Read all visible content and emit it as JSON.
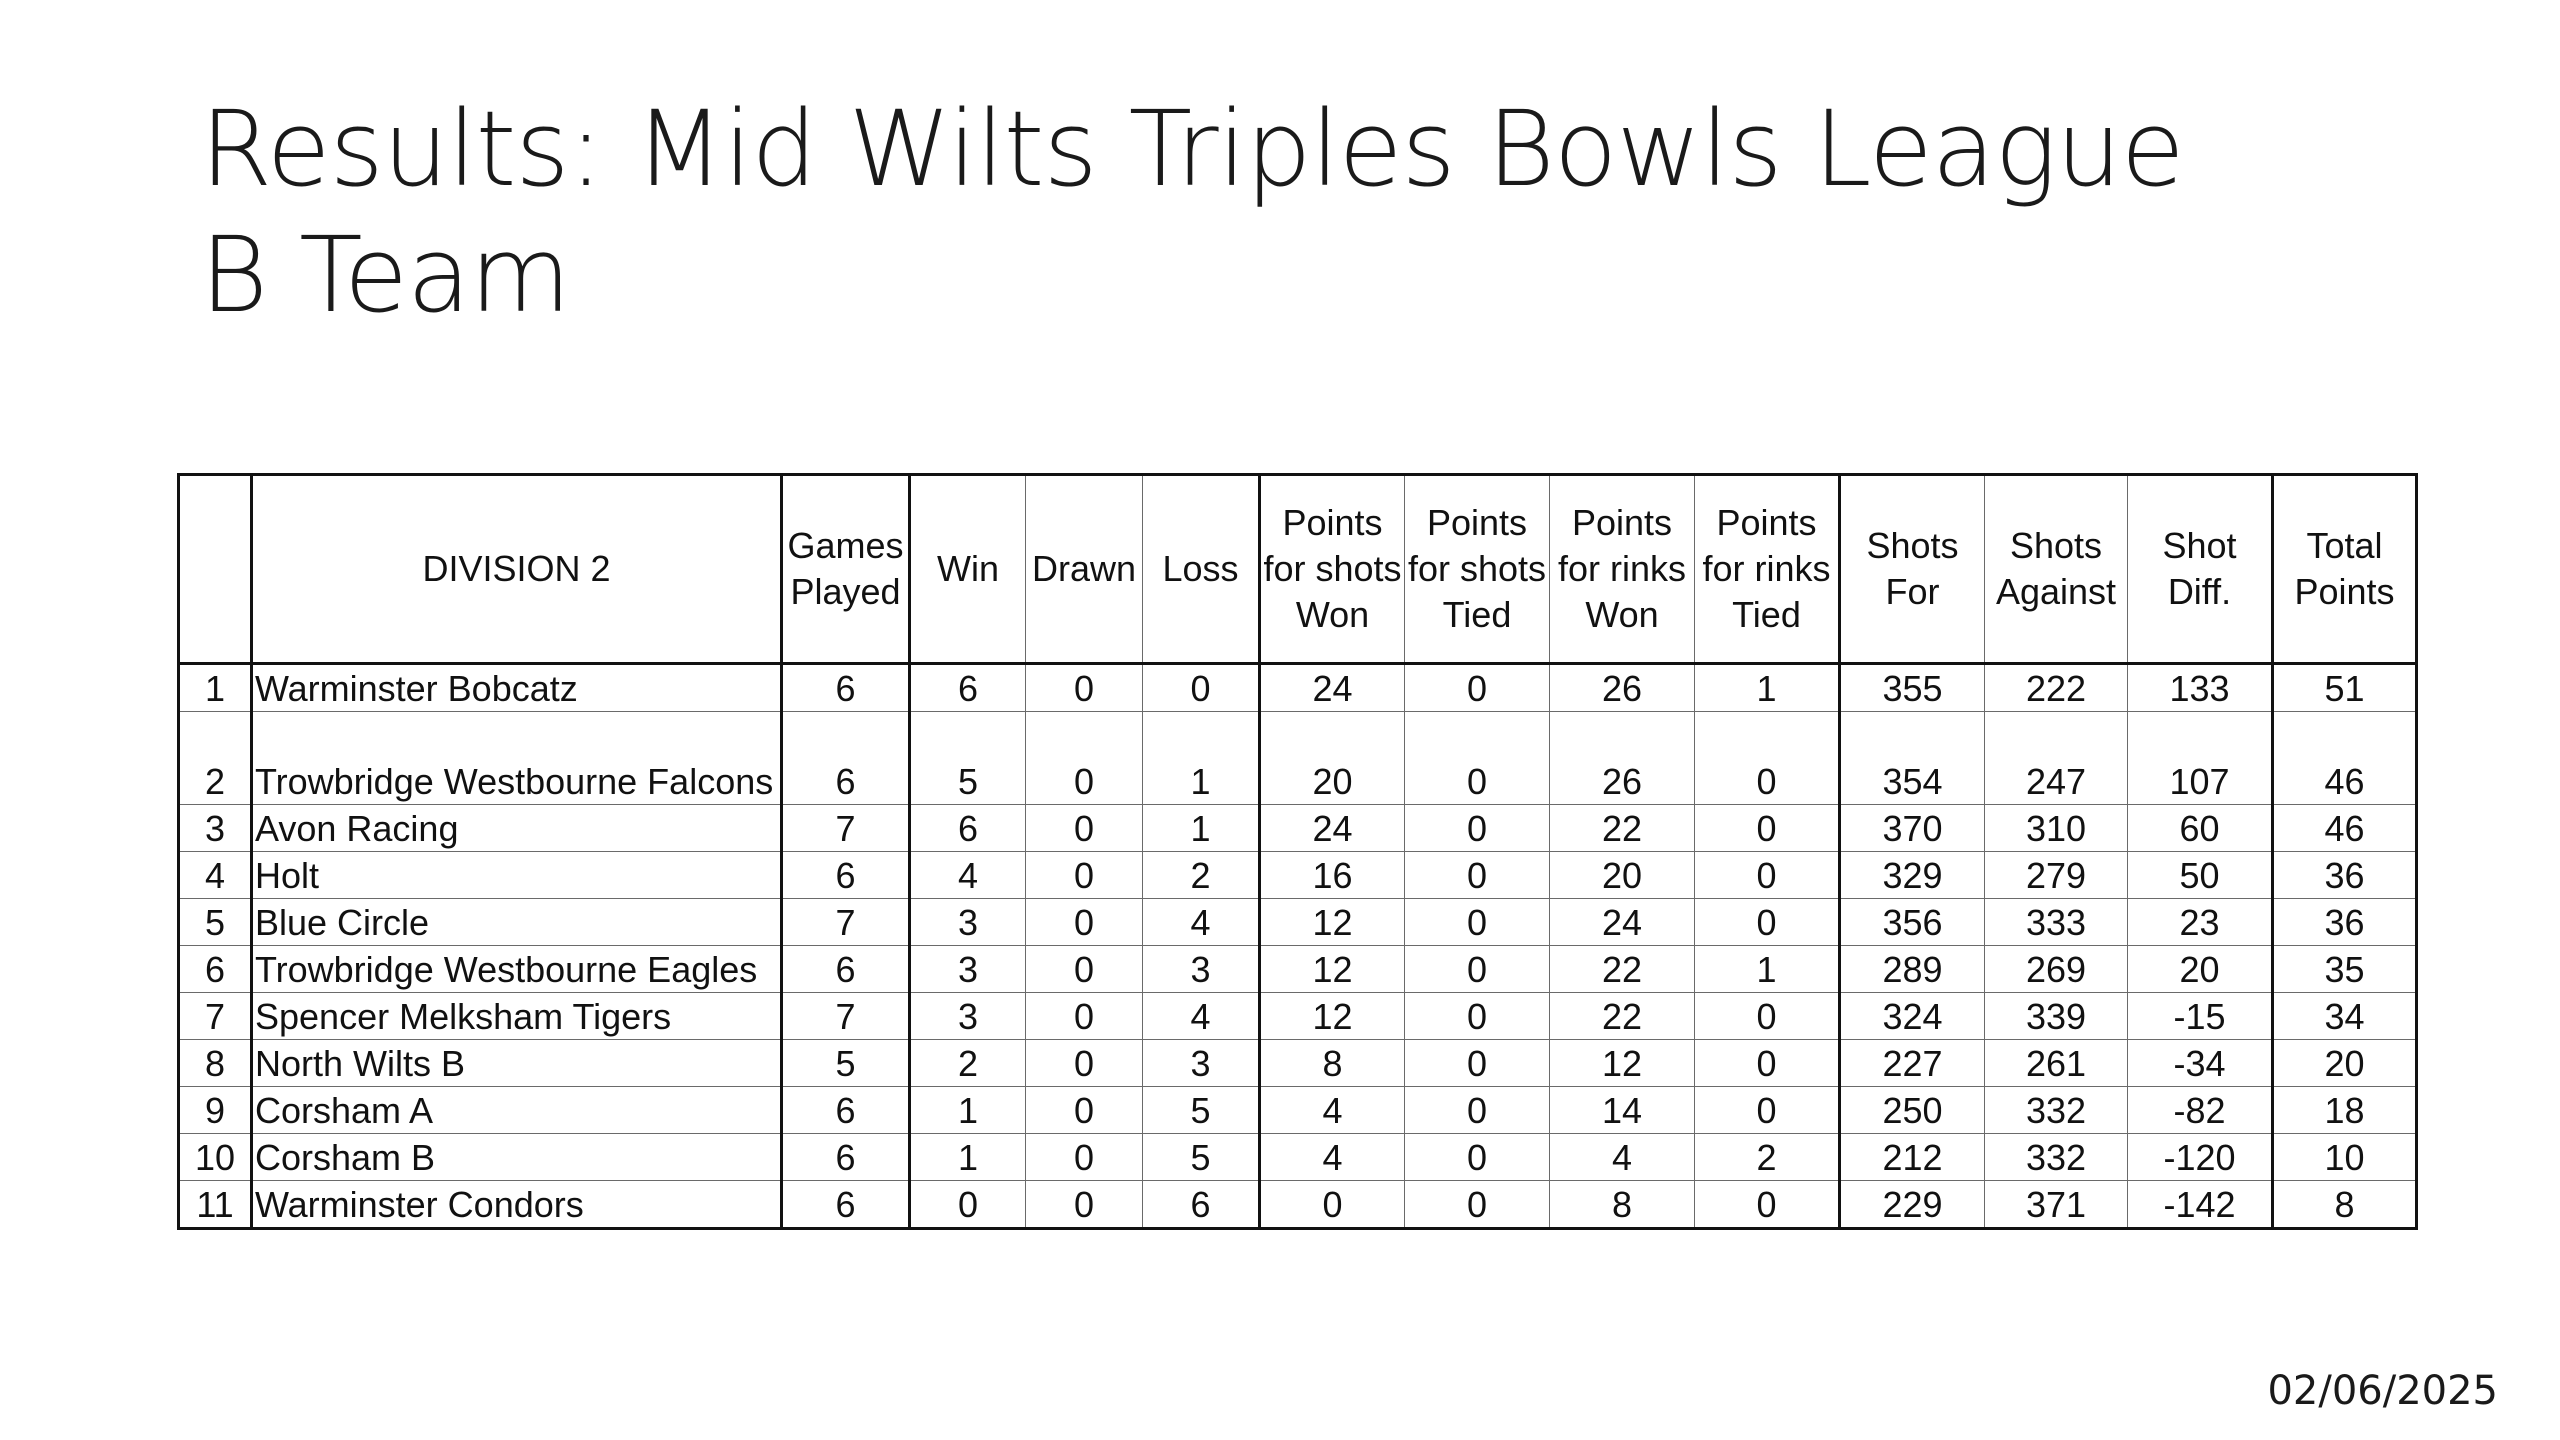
{
  "title": {
    "line1": "Results: Mid Wilts Triples Bowls League",
    "line2": "B Team"
  },
  "table": {
    "headers": {
      "division": "DIVISION 2",
      "games_played": "Games Played",
      "win": "Win",
      "drawn": "Drawn",
      "loss": "Loss",
      "points_shots_won": "Points for shots Won",
      "points_shots_tied": "Points for shots Tied",
      "points_rinks_won": "Points for rinks Won",
      "points_rinks_tied": "Points for rinks Tied",
      "shots_for": "Shots For",
      "shots_against": "Shots Against",
      "shot_diff": "Shot Diff.",
      "total_points": "Total Points"
    },
    "rows": [
      {
        "pos": "1",
        "team": "Warminster Bobcatz",
        "played": "6",
        "win": "6",
        "drawn": "0",
        "loss": "0",
        "psw": "24",
        "pst": "0",
        "prw": "26",
        "prt": "1",
        "sf": "355",
        "sa": "222",
        "diff": "133",
        "total": "51"
      },
      {
        "pos": "2",
        "team": "Trowbridge Westbourne Falcons",
        "played": "6",
        "win": "5",
        "drawn": "0",
        "loss": "1",
        "psw": "20",
        "pst": "0",
        "prw": "26",
        "prt": "0",
        "sf": "354",
        "sa": "247",
        "diff": "107",
        "total": "46"
      },
      {
        "pos": "3",
        "team": "Avon Racing",
        "played": "7",
        "win": "6",
        "drawn": "0",
        "loss": "1",
        "psw": "24",
        "pst": "0",
        "prw": "22",
        "prt": "0",
        "sf": "370",
        "sa": "310",
        "diff": "60",
        "total": "46"
      },
      {
        "pos": "4",
        "team": "Holt",
        "played": "6",
        "win": "4",
        "drawn": "0",
        "loss": "2",
        "psw": "16",
        "pst": "0",
        "prw": "20",
        "prt": "0",
        "sf": "329",
        "sa": "279",
        "diff": "50",
        "total": "36"
      },
      {
        "pos": "5",
        "team": "Blue Circle",
        "played": "7",
        "win": "3",
        "drawn": "0",
        "loss": "4",
        "psw": "12",
        "pst": "0",
        "prw": "24",
        "prt": "0",
        "sf": "356",
        "sa": "333",
        "diff": "23",
        "total": "36"
      },
      {
        "pos": "6",
        "team": "Trowbridge Westbourne Eagles",
        "played": "6",
        "win": "3",
        "drawn": "0",
        "loss": "3",
        "psw": "12",
        "pst": "0",
        "prw": "22",
        "prt": "1",
        "sf": "289",
        "sa": "269",
        "diff": "20",
        "total": "35"
      },
      {
        "pos": "7",
        "team": "Spencer Melksham Tigers",
        "played": "7",
        "win": "3",
        "drawn": "0",
        "loss": "4",
        "psw": "12",
        "pst": "0",
        "prw": "22",
        "prt": "0",
        "sf": "324",
        "sa": "339",
        "diff": "-15",
        "total": "34"
      },
      {
        "pos": "8",
        "team": "North Wilts B",
        "played": "5",
        "win": "2",
        "drawn": "0",
        "loss": "3",
        "psw": "8",
        "pst": "0",
        "prw": "12",
        "prt": "0",
        "sf": "227",
        "sa": "261",
        "diff": "-34",
        "total": "20"
      },
      {
        "pos": "9",
        "team": "Corsham A",
        "played": "6",
        "win": "1",
        "drawn": "0",
        "loss": "5",
        "psw": "4",
        "pst": "0",
        "prw": "14",
        "prt": "0",
        "sf": "250",
        "sa": "332",
        "diff": "-82",
        "total": "18"
      },
      {
        "pos": "10",
        "team": "Corsham B",
        "played": "6",
        "win": "1",
        "drawn": "0",
        "loss": "5",
        "psw": "4",
        "pst": "0",
        "prw": "4",
        "prt": "2",
        "sf": "212",
        "sa": "332",
        "diff": "-120",
        "total": "10"
      },
      {
        "pos": "11",
        "team": "Warminster Condors",
        "played": "6",
        "win": "0",
        "drawn": "0",
        "loss": "6",
        "psw": "0",
        "pst": "0",
        "prw": "8",
        "prt": "0",
        "sf": "229",
        "sa": "371",
        "diff": "-142",
        "total": "8"
      }
    ]
  },
  "footer": {
    "date": "02/06/2025"
  }
}
